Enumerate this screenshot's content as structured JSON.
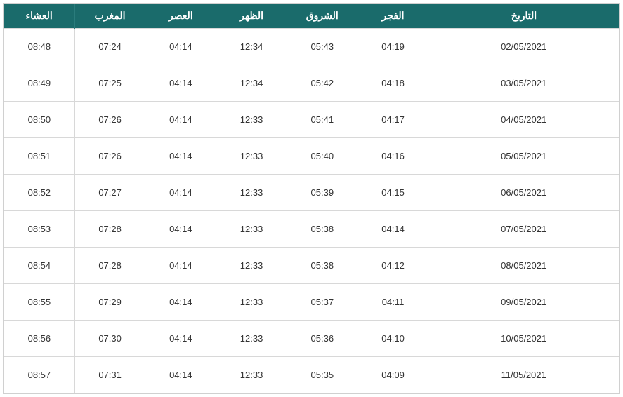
{
  "table": {
    "header_bg": "#1a6b6b",
    "header_fg": "#ffffff",
    "border_color": "#d8d8d8",
    "cell_fg": "#333333",
    "cell_bg": "#ffffff",
    "header_fontsize": 14,
    "cell_fontsize": 13,
    "columns": [
      "العشاء",
      "المغرب",
      "العصر",
      "الظهر",
      "الشروق",
      "الفجر",
      "التاريخ"
    ],
    "col_widths_pct": [
      11.5,
      11.5,
      11.5,
      11.5,
      11.5,
      11.5,
      31
    ],
    "rows": [
      [
        "08:48",
        "07:24",
        "04:14",
        "12:34",
        "05:43",
        "04:19",
        "02/05/2021"
      ],
      [
        "08:49",
        "07:25",
        "04:14",
        "12:34",
        "05:42",
        "04:18",
        "03/05/2021"
      ],
      [
        "08:50",
        "07:26",
        "04:14",
        "12:33",
        "05:41",
        "04:17",
        "04/05/2021"
      ],
      [
        "08:51",
        "07:26",
        "04:14",
        "12:33",
        "05:40",
        "04:16",
        "05/05/2021"
      ],
      [
        "08:52",
        "07:27",
        "04:14",
        "12:33",
        "05:39",
        "04:15",
        "06/05/2021"
      ],
      [
        "08:53",
        "07:28",
        "04:14",
        "12:33",
        "05:38",
        "04:14",
        "07/05/2021"
      ],
      [
        "08:54",
        "07:28",
        "04:14",
        "12:33",
        "05:38",
        "04:12",
        "08/05/2021"
      ],
      [
        "08:55",
        "07:29",
        "04:14",
        "12:33",
        "05:37",
        "04:11",
        "09/05/2021"
      ],
      [
        "08:56",
        "07:30",
        "04:14",
        "12:33",
        "05:36",
        "04:10",
        "10/05/2021"
      ],
      [
        "08:57",
        "07:31",
        "04:14",
        "12:33",
        "05:35",
        "04:09",
        "11/05/2021"
      ]
    ]
  }
}
